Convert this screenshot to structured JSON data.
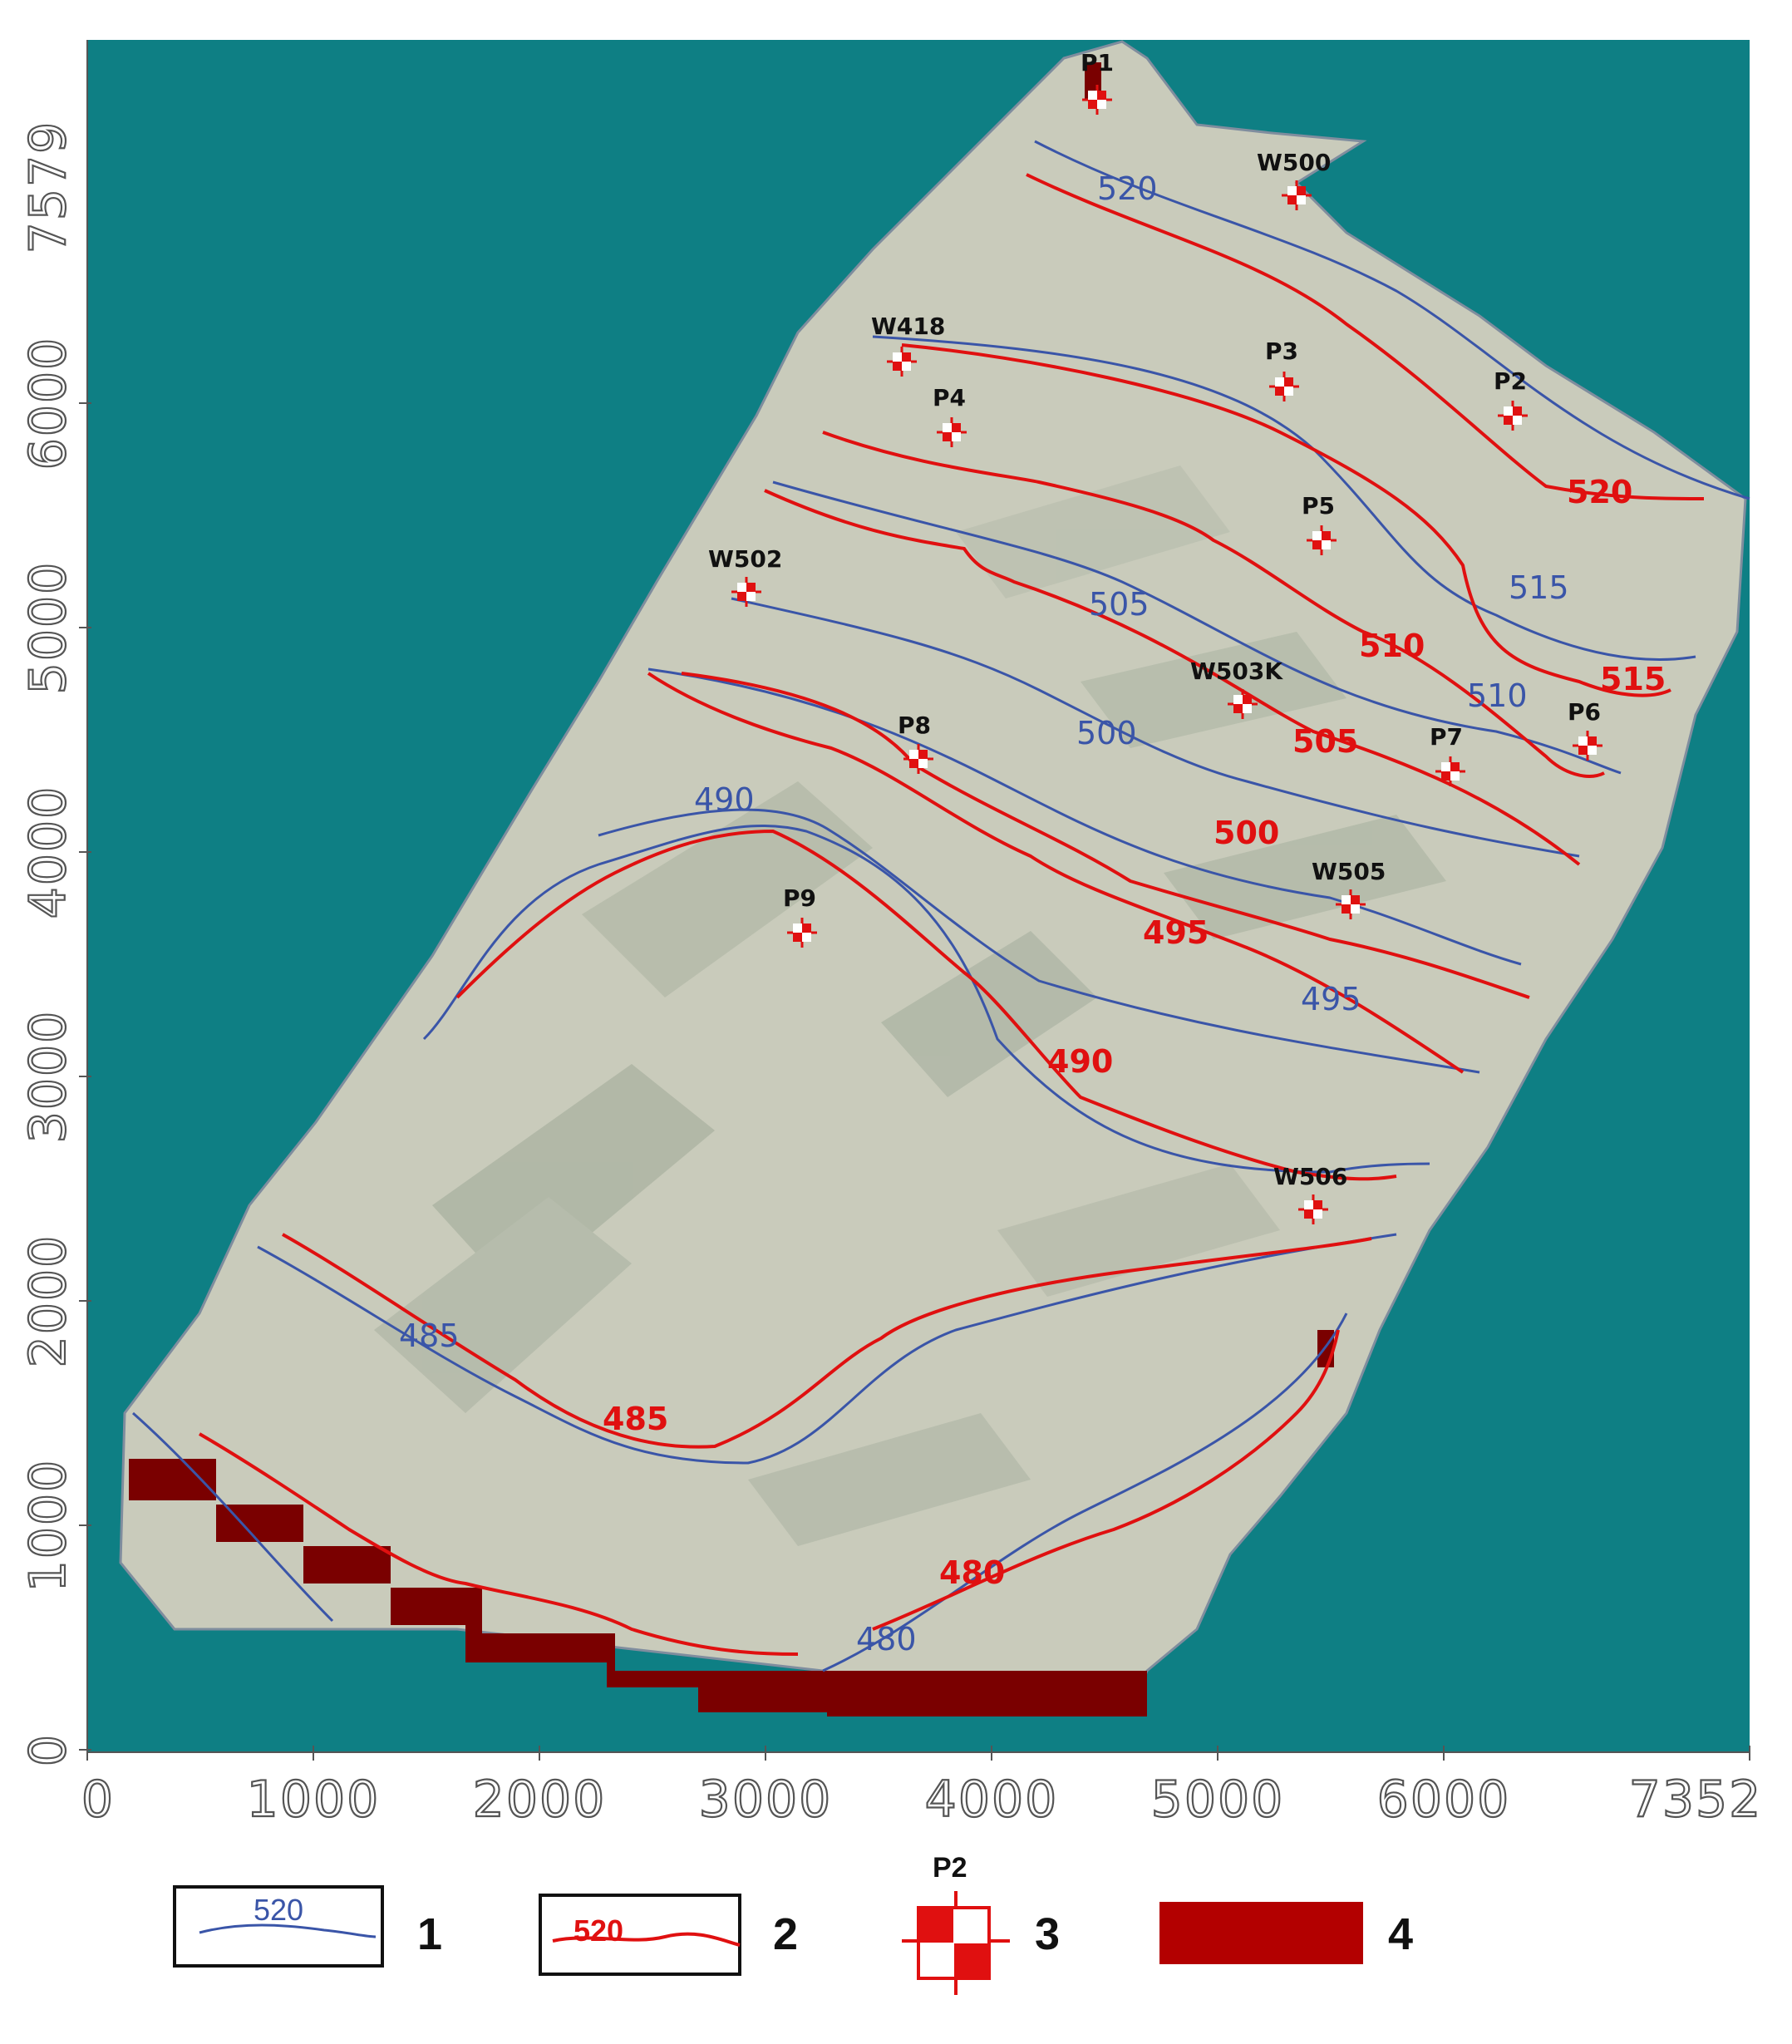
{
  "map": {
    "background_color": "#0e7f84",
    "aerial_color": "#c9cbbb",
    "boundary_color": "#2a4d7a",
    "blue_contour_color": "#3a55a8",
    "red_contour_color": "#e01010",
    "dark_zone_color": "#7a0000",
    "y_ticks": [
      "7579",
      "6000",
      "5000",
      "4000",
      "3000",
      "2000",
      "1000",
      "0"
    ],
    "x_ticks": [
      "0",
      "1000",
      "2000",
      "3000",
      "4000",
      "5000",
      "6000",
      "7352"
    ],
    "blue_contours": [
      {
        "label": "520"
      },
      {
        "label": "515"
      },
      {
        "label": "510"
      },
      {
        "label": "505"
      },
      {
        "label": "500"
      },
      {
        "label": "495"
      },
      {
        "label": "490"
      },
      {
        "label": "485"
      },
      {
        "label": "480"
      }
    ],
    "red_contours": [
      {
        "label": "520"
      },
      {
        "label": "515"
      },
      {
        "label": "510"
      },
      {
        "label": "505"
      },
      {
        "label": "500"
      },
      {
        "label": "495"
      },
      {
        "label": "490"
      },
      {
        "label": "485"
      },
      {
        "label": "480"
      }
    ],
    "wells": [
      {
        "name": "P1"
      },
      {
        "name": "W500"
      },
      {
        "name": "W418"
      },
      {
        "name": "P3"
      },
      {
        "name": "P2"
      },
      {
        "name": "P4"
      },
      {
        "name": "P5"
      },
      {
        "name": "W502"
      },
      {
        "name": "W503K"
      },
      {
        "name": "P7"
      },
      {
        "name": "P6"
      },
      {
        "name": "P8"
      },
      {
        "name": "W505"
      },
      {
        "name": "P9"
      },
      {
        "name": "W506"
      }
    ]
  },
  "legend": {
    "items": [
      {
        "number": "1",
        "sample_label": "520",
        "kind": "blue-contour"
      },
      {
        "number": "2",
        "sample_label": "520",
        "kind": "red-contour"
      },
      {
        "number": "3",
        "sample_label": "P2",
        "kind": "well-symbol"
      },
      {
        "number": "4",
        "kind": "dark-red-zone"
      }
    ]
  }
}
